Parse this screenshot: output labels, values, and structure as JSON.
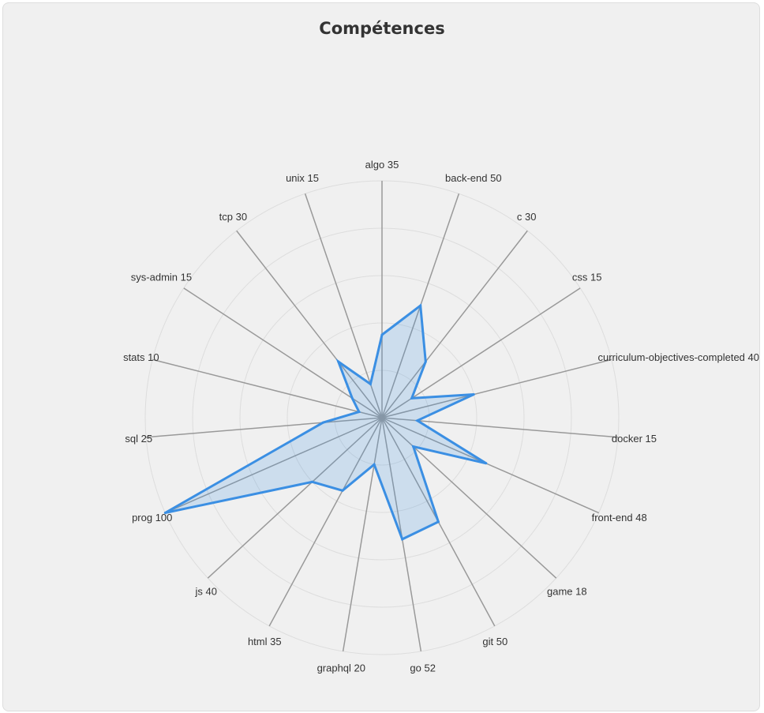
{
  "chart_data": {
    "type": "radar",
    "title": "Compétences",
    "categories": [
      "algo",
      "back-end",
      "c",
      "css",
      "curriculum-objectives-completed",
      "docker",
      "front-end",
      "game",
      "git",
      "go",
      "graphql",
      "html",
      "js",
      "prog",
      "sql",
      "stats",
      "sys-admin",
      "tcp",
      "unix"
    ],
    "labels": [
      "algo 35",
      "back-end 50",
      "c 30",
      "css 15",
      "curriculum-objectives-completed 40",
      "docker 15",
      "front-end 48",
      "game 18",
      "git 50",
      "go 52",
      "graphql 20",
      "html 35",
      "js 40",
      "prog 100",
      "sql 25",
      "stats 10",
      "sys-admin 15",
      "tcp 30",
      "unix 15"
    ],
    "values": [
      35,
      50,
      30,
      15,
      40,
      15,
      48,
      18,
      50,
      52,
      20,
      35,
      40,
      100,
      25,
      10,
      15,
      30,
      15
    ],
    "rlim": [
      0,
      100
    ],
    "grid": true,
    "colors": {
      "line": "#3b8fe3",
      "fill": "rgba(59,143,227,0.2)",
      "spoke": "#999999",
      "grid": "#dddddd"
    }
  }
}
